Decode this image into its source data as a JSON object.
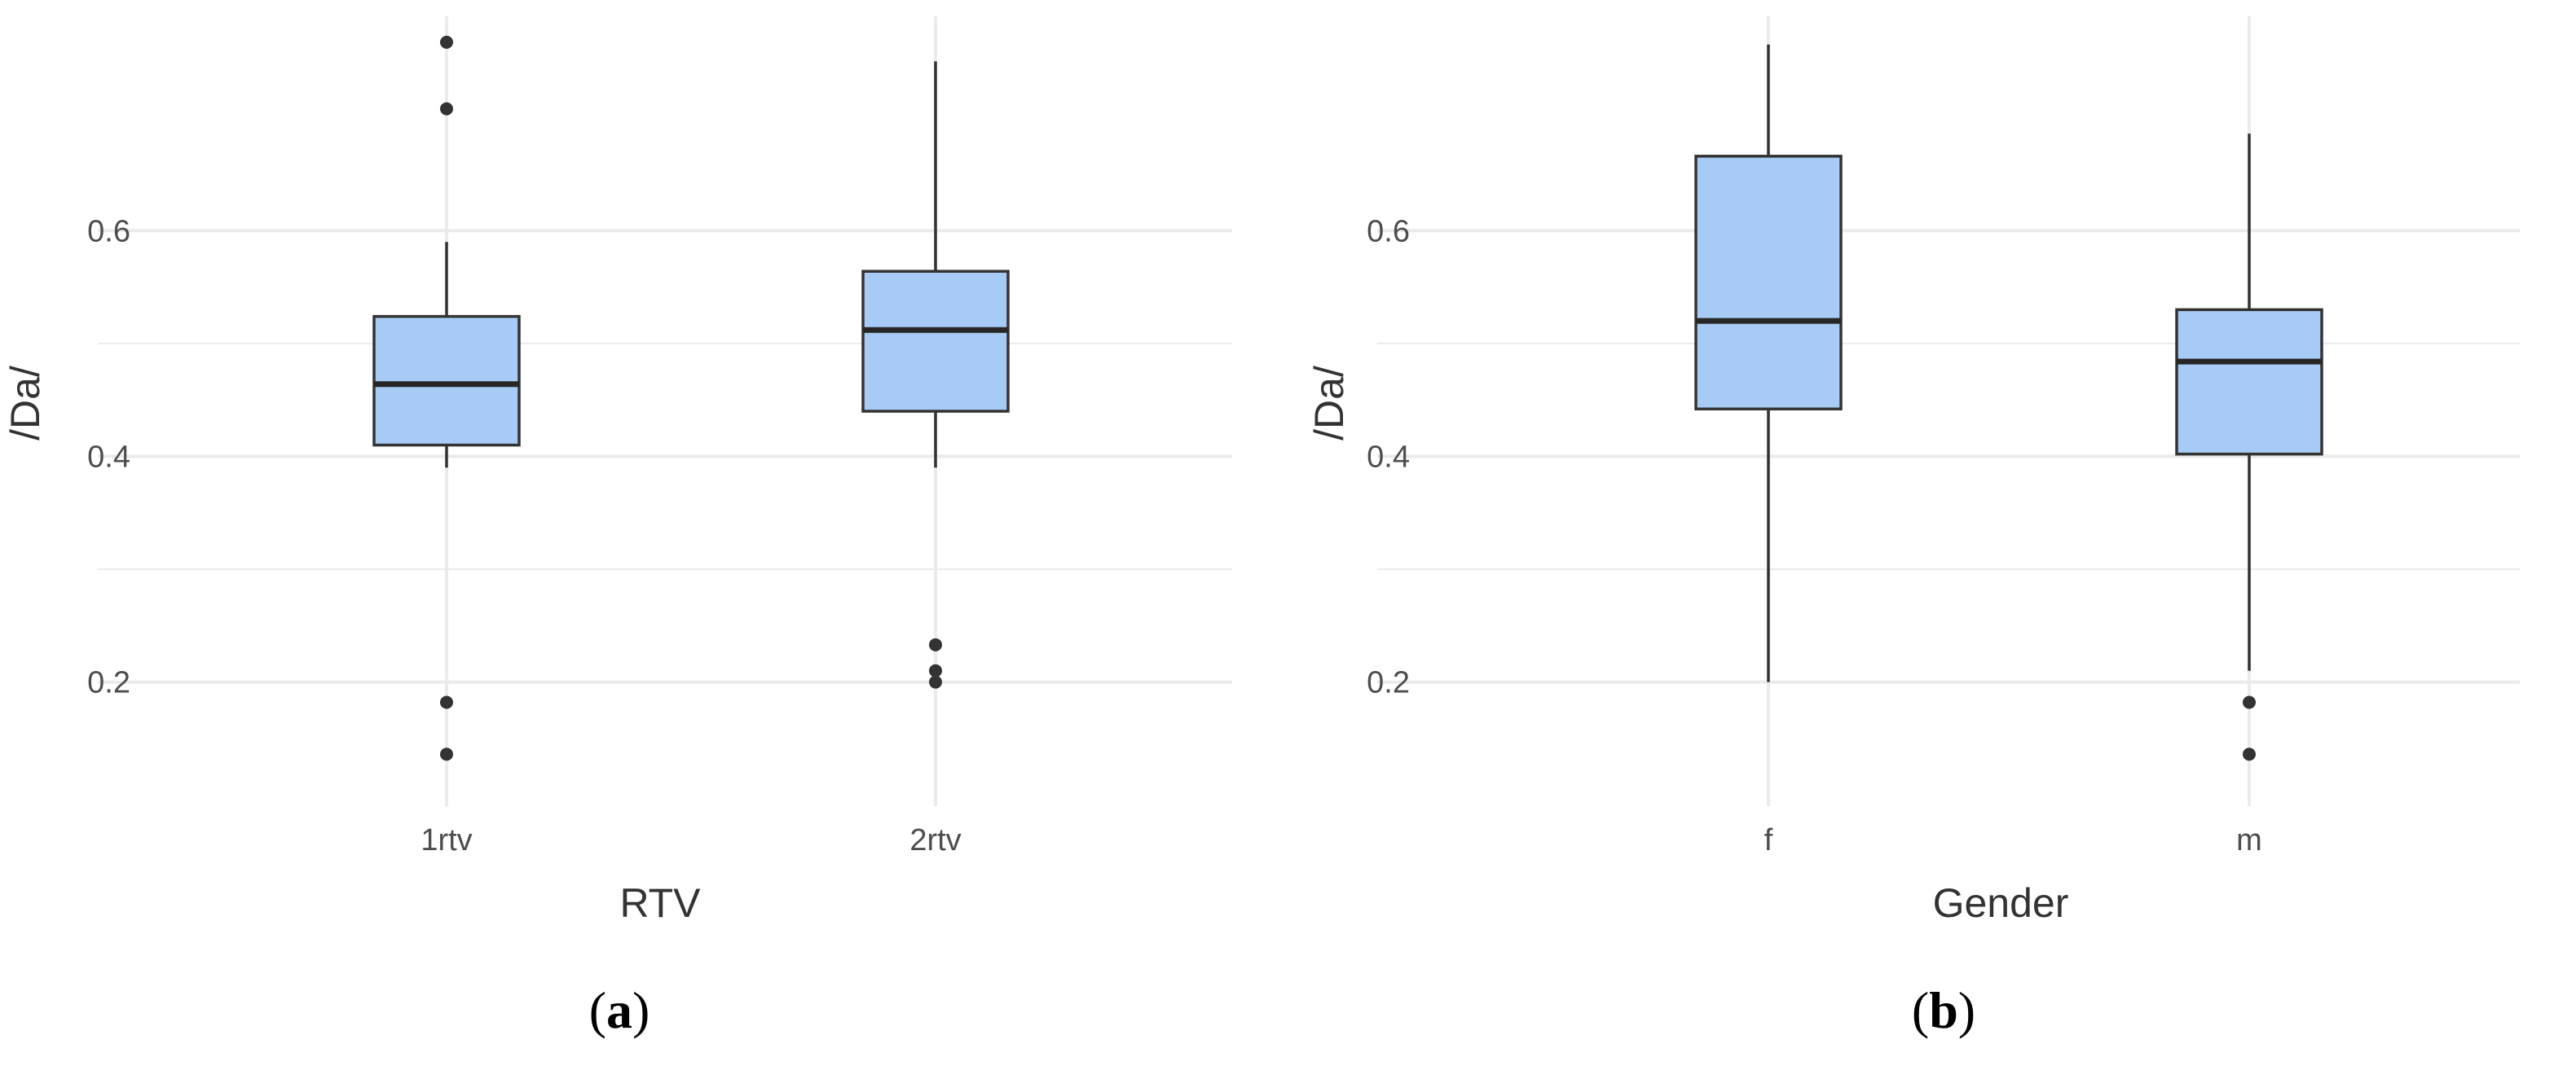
{
  "colors": {
    "box_fill": "#a7cbf5",
    "box_stroke": "#333333",
    "grid": "#ebebeb",
    "outlier": "#333333"
  },
  "chart_data": [
    {
      "type": "box",
      "panel_label": "(a)",
      "panel_letter": "a",
      "xlabel": "RTV",
      "ylabel": "/Da/",
      "ylim": [
        0.09,
        0.79
      ],
      "yticks": [
        0.2,
        0.4,
        0.6
      ],
      "ytick_labels": [
        "0.2",
        "0.4",
        "0.6"
      ],
      "grid": true,
      "categories": [
        "1rtv",
        "2rtv"
      ],
      "boxes": [
        {
          "category": "1rtv",
          "whisker_low": 0.39,
          "q1": 0.41,
          "median": 0.464,
          "q3": 0.524,
          "whisker_high": 0.59,
          "outliers": [
            0.767,
            0.708,
            0.182,
            0.136
          ]
        },
        {
          "category": "2rtv",
          "whisker_low": 0.39,
          "q1": 0.44,
          "median": 0.512,
          "q3": 0.564,
          "whisker_high": 0.75,
          "outliers": [
            0.233,
            0.21,
            0.2
          ]
        }
      ]
    },
    {
      "type": "box",
      "panel_label": "(b)",
      "panel_letter": "b",
      "xlabel": "Gender",
      "ylabel": "/Da/",
      "ylim": [
        0.09,
        0.79
      ],
      "yticks": [
        0.2,
        0.4,
        0.6
      ],
      "ytick_labels": [
        "0.2",
        "0.4",
        "0.6"
      ],
      "grid": true,
      "categories": [
        "f",
        "m"
      ],
      "boxes": [
        {
          "category": "f",
          "whisker_low": 0.2,
          "q1": 0.442,
          "median": 0.52,
          "q3": 0.666,
          "whisker_high": 0.765,
          "outliers": []
        },
        {
          "category": "m",
          "whisker_low": 0.21,
          "q1": 0.402,
          "median": 0.484,
          "q3": 0.53,
          "whisker_high": 0.686,
          "outliers": [
            0.182,
            0.136
          ]
        }
      ]
    }
  ]
}
